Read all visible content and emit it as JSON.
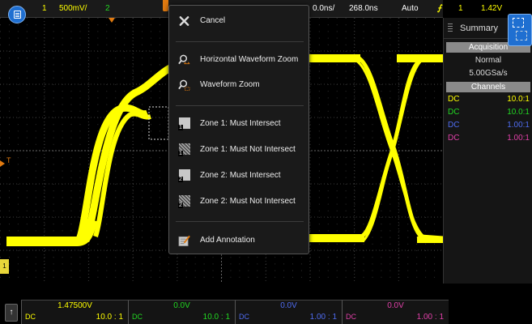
{
  "colors": {
    "ch1": "#ffff00",
    "ch2": "#22d822",
    "ch3": "#4f6cf0",
    "ch4": "#e040a8",
    "accent": "#1f6fd1",
    "trigger": "#e07a10"
  },
  "topbar": {
    "ch1_number": "1",
    "ch1_scale": "500mV/",
    "ch2_number": "2",
    "timebase": "0.0ns/",
    "delay": "268.0ns",
    "trigger_mode": "Auto",
    "trigger_source": "1",
    "trigger_level": "1.42V"
  },
  "menu": {
    "cancel": "Cancel",
    "horizontal_zoom": "Horizontal Waveform Zoom",
    "waveform_zoom": "Waveform Zoom",
    "zone1_must_intersect": "Zone 1: Must Intersect",
    "zone1_must_not_intersect": "Zone 1: Must Not Intersect",
    "zone2_must_intersect": "Zone 2: Must Intersect",
    "zone2_must_not_intersect": "Zone 2: Must Not Intersect",
    "add_annotation": "Add Annotation",
    "zone1_badge": "1",
    "zone2_badge": "2"
  },
  "right_panel": {
    "title": "Summary",
    "acquisition_header": "Acquisition",
    "acq_mode": "Normal",
    "sample_rate": "5.00GSa/s",
    "channels_header": "Channels",
    "channels": [
      {
        "coupling": "DC",
        "ratio": "10.0:1"
      },
      {
        "coupling": "DC",
        "ratio": "10.0:1"
      },
      {
        "coupling": "DC",
        "ratio": "1.00:1"
      },
      {
        "coupling": "DC",
        "ratio": "1.00:1"
      }
    ]
  },
  "bottom": {
    "channels": [
      {
        "offset": "1.47500V",
        "coupling": "DC",
        "ratio": "10.0 : 1"
      },
      {
        "offset": "0.0V",
        "coupling": "DC",
        "ratio": "10.0 : 1"
      },
      {
        "offset": "0.0V",
        "coupling": "DC",
        "ratio": "1.00 : 1"
      },
      {
        "offset": "0.0V",
        "coupling": "DC",
        "ratio": "1.00 : 1"
      }
    ]
  },
  "markers": {
    "trigger_level_label": "T",
    "ch1_ground_label": "1"
  }
}
